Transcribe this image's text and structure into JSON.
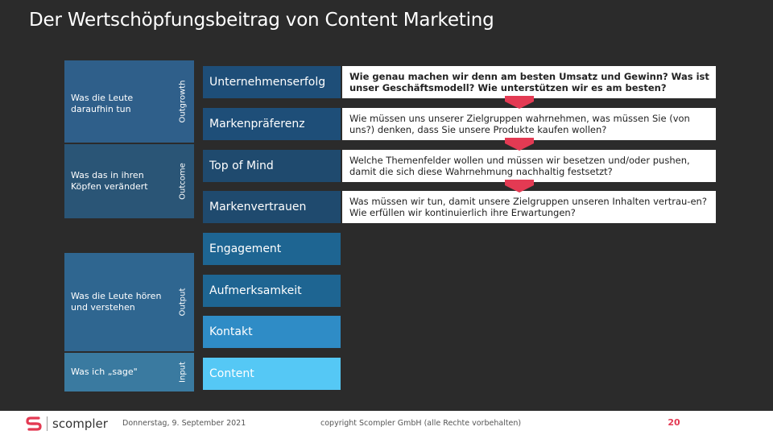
{
  "title": "Der Wertschöpfungsbeitrag von Content Marketing",
  "colors": {
    "background": "#2b2b2b",
    "outgrowth_block": "#2f5f8a",
    "outcome_block": "#2a5576",
    "output_block": "#2f6690",
    "input_block": "#3a7aa0",
    "accent_red": "#e33a53",
    "content_cyan": "#55c8f5",
    "kontakt_blue": "#2f8cc6"
  },
  "rows": [
    {
      "description": "Was die Leute daraufhin tun",
      "category": "Outgrowth"
    },
    {
      "description": "Was das in ihren Köpfen verändert",
      "category": "Outcome"
    },
    {
      "description": "Was die Leute hören und verstehen",
      "category": "Output"
    },
    {
      "description": "Was ich „sage\"",
      "category": "Input"
    }
  ],
  "levels": [
    {
      "label": "Unternehmenserfolg",
      "color": "#1e4e78"
    },
    {
      "label": "Markenpräferenz",
      "color": "#1e4e78"
    },
    {
      "label": "Top of Mind",
      "color": "#1f4a6e"
    },
    {
      "label": "Markenvertrauen",
      "color": "#1f4a6e"
    },
    {
      "label": "Engagement",
      "color": "#1e6592"
    },
    {
      "label": "Aufmerksamkeit",
      "color": "#1e6592"
    },
    {
      "label": "Kontakt",
      "color": "#2f8cc6"
    },
    {
      "label": "Content",
      "color": "#55c8f5"
    }
  ],
  "questions": [
    {
      "text": "Wie genau machen wir denn am besten Umsatz und Gewinn? Was ist unser Geschäftsmodell? Wie unterstützen wir es am besten?",
      "bold": true
    },
    {
      "text": "Wie müssen uns unserer Zielgruppen wahrnehmen, was müssen Sie (von uns?) denken, dass Sie unsere Produkte kaufen wollen?",
      "bold": false
    },
    {
      "text": "Welche Themenfelder wollen und müssen wir besetzen und/oder pushen, damit die sich diese Wahrnehmung nachhaltig festsetzt?",
      "bold": false
    },
    {
      "text": "Was müssen wir tun, damit unsere Zielgruppen unseren Inhalten vertrau-en? Wie erfüllen wir kontinuierlich ihre Erwartungen?",
      "bold": false
    }
  ],
  "footer": {
    "logo_text": "scompler",
    "date": "Donnerstag, 9. September 2021",
    "copyright": "copyright Scompler GmbH (alle Rechte vorbehalten)",
    "page_number": "20"
  }
}
